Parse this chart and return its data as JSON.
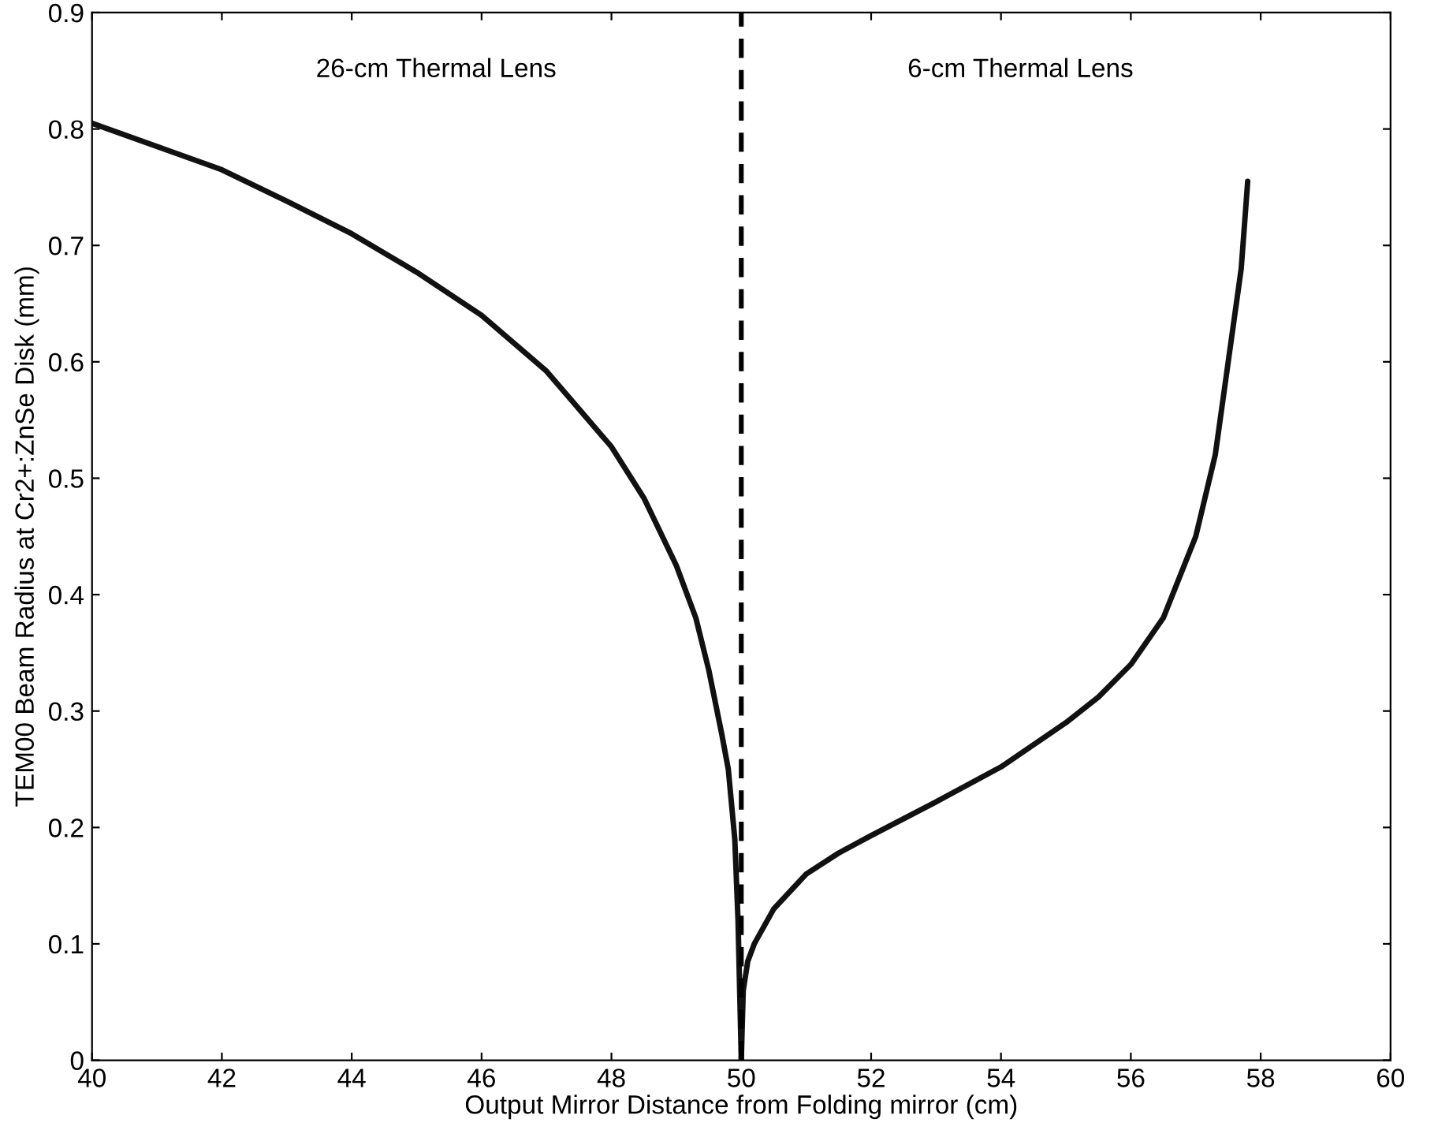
{
  "chart_data": {
    "type": "line",
    "xlabel": "Output Mirror Distance from Folding mirror (cm)",
    "ylabel": "TEM00 Beam Radius at Cr2+:ZnSe Disk (mm)",
    "xlim": [
      40,
      60
    ],
    "xticks": [
      40,
      42,
      44,
      46,
      48,
      50,
      52,
      54,
      56,
      58,
      60
    ],
    "ylim": [
      0,
      0.9
    ],
    "yticks": [
      0,
      0.1,
      0.2,
      0.3,
      0.4,
      0.5,
      0.6,
      0.7,
      0.8,
      0.9
    ],
    "grid": false,
    "legend": false,
    "series": [
      {
        "color": "#111111",
        "line_style": "solid",
        "x": [
          40,
          41,
          42,
          43,
          44,
          45,
          46,
          47,
          48,
          48.5,
          49,
          49.3,
          49.5,
          49.7,
          49.8,
          49.9,
          49.95,
          50
        ],
        "values": [
          0.805,
          0.785,
          0.765,
          0.738,
          0.71,
          0.677,
          0.64,
          0.592,
          0.527,
          0.483,
          0.425,
          0.38,
          0.335,
          0.28,
          0.25,
          0.19,
          0.12,
          0
        ]
      },
      {
        "color": "#111111",
        "line_style": "solid",
        "x": [
          50,
          50.03,
          50.1,
          50.2,
          50.5,
          51,
          51.5,
          52,
          53,
          54,
          55,
          55.5,
          56,
          56.5,
          57,
          57.3,
          57.5,
          57.7,
          57.8
        ],
        "values": [
          0,
          0.06,
          0.085,
          0.1,
          0.13,
          0.16,
          0.178,
          0.193,
          0.222,
          0.252,
          0.29,
          0.312,
          0.34,
          0.38,
          0.45,
          0.52,
          0.6,
          0.68,
          0.755
        ]
      }
    ],
    "ref_lines": [
      {
        "axis": "x",
        "value": 50,
        "color": "#000000",
        "line_style": "dashed"
      }
    ],
    "annotations": [
      "26-cm Thermal Lens",
      "6-cm Thermal Lens"
    ]
  }
}
